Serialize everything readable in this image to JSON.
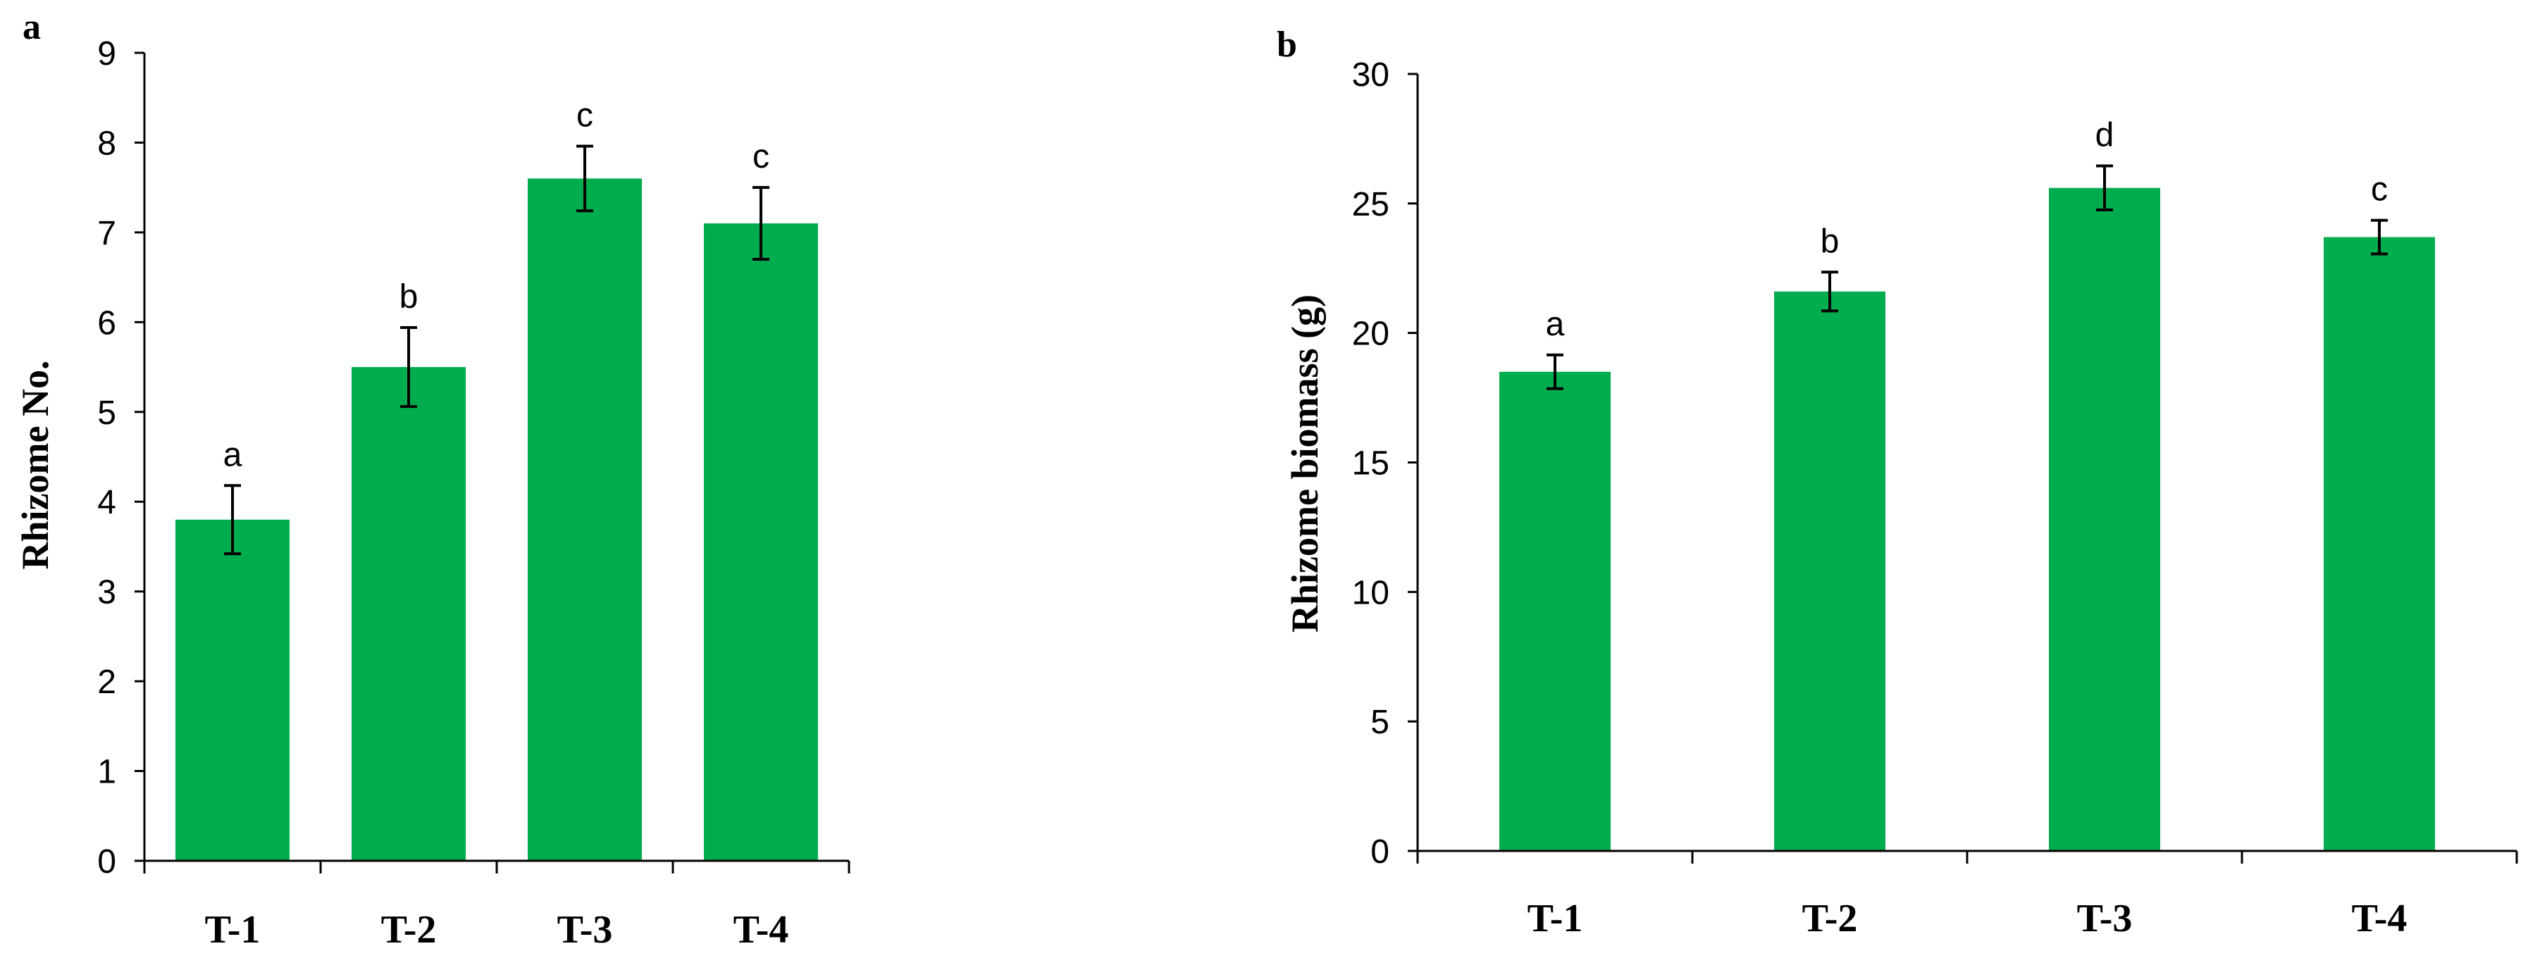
{
  "chart_data": [
    {
      "panel": "a",
      "type": "bar",
      "title": "",
      "xlabel": "",
      "ylabel": "Rhizome No.",
      "categories": [
        "T-1",
        "T-2",
        "T-3",
        "T-4"
      ],
      "values": [
        3.8,
        5.5,
        7.6,
        7.1
      ],
      "errors": [
        0.38,
        0.44,
        0.36,
        0.4
      ],
      "significance": [
        "a",
        "b",
        "c",
        "c"
      ],
      "ylim": [
        0,
        9
      ],
      "yticks": [
        0,
        1,
        2,
        3,
        4,
        5,
        6,
        7,
        8,
        9
      ],
      "grid": false,
      "legend": "none",
      "bar_color": "#00ad4e"
    },
    {
      "panel": "b",
      "type": "bar",
      "title": "",
      "xlabel": "",
      "ylabel": "Rhizome biomass (g)",
      "categories": [
        "T-1",
        "T-2",
        "T-3",
        "T-4"
      ],
      "values": [
        18.5,
        21.6,
        25.6,
        23.7
      ],
      "errors": [
        0.65,
        0.75,
        0.85,
        0.65
      ],
      "significance": [
        "a",
        "b",
        "d",
        "c"
      ],
      "ylim": [
        0,
        30
      ],
      "yticks": [
        0,
        5,
        10,
        15,
        20,
        25,
        30
      ],
      "grid": false,
      "legend": "none",
      "bar_color": "#00ad4e"
    }
  ]
}
